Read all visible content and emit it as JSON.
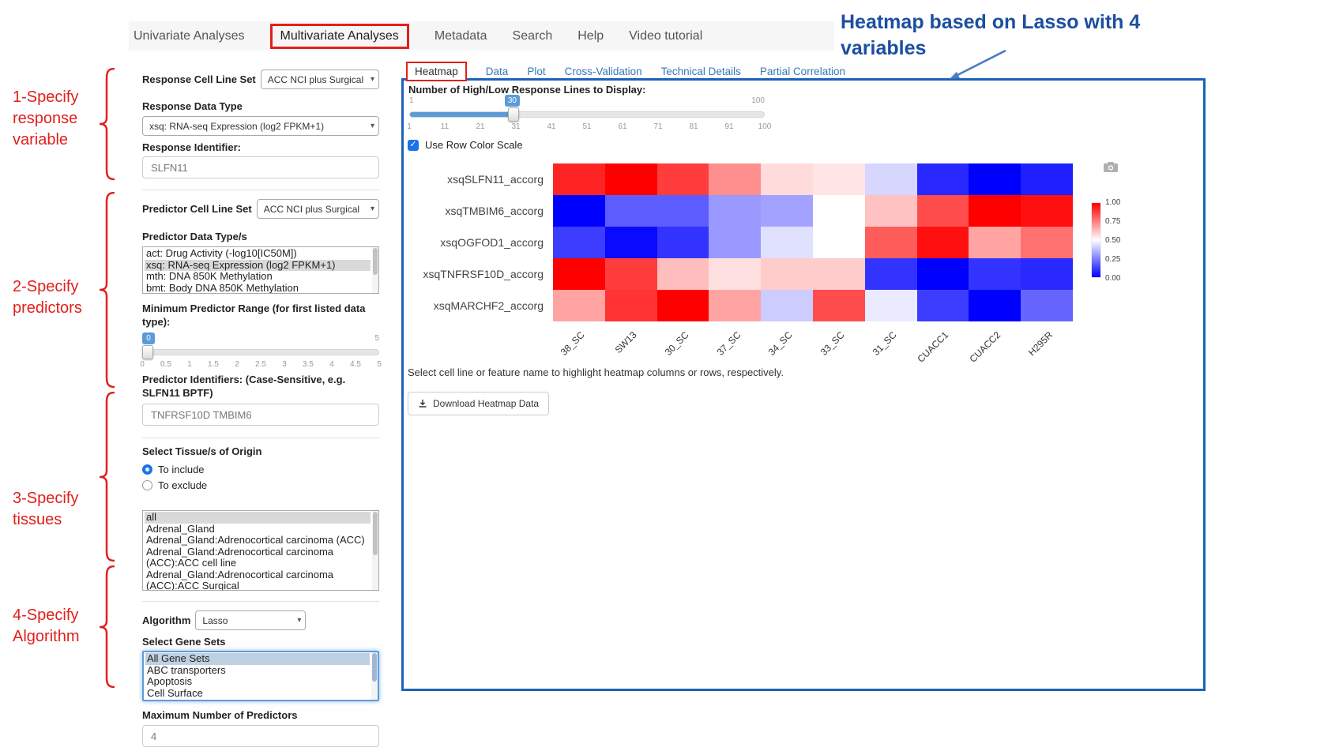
{
  "annotations": {
    "heading": "Heatmap based on Lasso with 4 variables",
    "steps": [
      "1-Specify response variable",
      "2-Specify predictors",
      "3-Specify tissues",
      "4-Specify Algorithm"
    ]
  },
  "nav": {
    "items": [
      "Univariate Analyses",
      "Multivariate Analyses",
      "Metadata",
      "Search",
      "Help",
      "Video tutorial"
    ],
    "active": "Multivariate Analyses"
  },
  "sidebar": {
    "response_cell_line_set_label": "Response Cell Line Set",
    "response_cell_line_set_value": "ACC NCI plus Surgical",
    "response_data_type_label": "Response Data Type",
    "response_data_type_value": "xsq: RNA-seq Expression (log2 FPKM+1)",
    "response_identifier_label": "Response Identifier:",
    "response_identifier_value": "SLFN11",
    "predictor_cell_line_set_label": "Predictor Cell Line Set",
    "predictor_cell_line_set_value": "ACC NCI plus Surgical",
    "predictor_data_types_label": "Predictor Data Type/s",
    "predictor_data_types_options": [
      {
        "label": "act: Drug Activity (-log10[IC50M])",
        "selected": false
      },
      {
        "label": "xsq: RNA-seq Expression (log2 FPKM+1)",
        "selected": true
      },
      {
        "label": "mth: DNA 850K Methylation",
        "selected": false
      },
      {
        "label": "bmt: Body DNA 850K Methylation",
        "selected": false
      }
    ],
    "min_predictor_range_label": "Minimum Predictor Range (for first listed data type):",
    "min_predictor_range_slider": {
      "min": "0",
      "max": "5",
      "value": "0",
      "ticks": [
        "0",
        "0.5",
        "1",
        "1.5",
        "2",
        "2.5",
        "3",
        "3.5",
        "4",
        "4.5",
        "5"
      ]
    },
    "predictor_identifiers_label": "Predictor Identifiers: (Case-Sensitive, e.g. SLFN11 BPTF)",
    "predictor_identifiers_value": "TNFRSF10D TMBIM6",
    "tissue_label": "Select Tissue/s of Origin",
    "tissue_radios": [
      {
        "label": "To include",
        "checked": true
      },
      {
        "label": "To exclude",
        "checked": false
      }
    ],
    "tissue_options": [
      {
        "label": "all",
        "selected": true
      },
      {
        "label": "Adrenal_Gland",
        "selected": false
      },
      {
        "label": "Adrenal_Gland:Adrenocortical carcinoma (ACC)",
        "selected": false
      },
      {
        "label": "Adrenal_Gland:Adrenocortical carcinoma (ACC):ACC cell line",
        "selected": false
      },
      {
        "label": "Adrenal_Gland:Adrenocortical carcinoma (ACC):ACC Surgical",
        "selected": false
      }
    ],
    "algorithm_label": "Algorithm",
    "algorithm_value": "Lasso",
    "gene_sets_label": "Select Gene Sets",
    "gene_sets_options": [
      {
        "label": "All Gene Sets",
        "selected": true
      },
      {
        "label": "ABC transporters",
        "selected": false
      },
      {
        "label": "Apoptosis",
        "selected": false
      },
      {
        "label": "Cell Surface",
        "selected": false
      }
    ],
    "max_predictors_label": "Maximum Number of Predictors",
    "max_predictors_value": "4"
  },
  "main": {
    "tabs": [
      {
        "label": "Heatmap",
        "active": true
      },
      {
        "label": "Data",
        "active": false
      },
      {
        "label": "Plot",
        "active": false
      },
      {
        "label": "Cross-Validation",
        "active": false
      },
      {
        "label": "Technical Details",
        "active": false
      },
      {
        "label": "Partial Correlation",
        "active": false
      }
    ],
    "lines_slider_label": "Number of High/Low Response Lines to Display:",
    "lines_slider": {
      "min": "1",
      "max": "100",
      "value": "30",
      "ticks": [
        "1",
        "11",
        "21",
        "31",
        "41",
        "51",
        "61",
        "71",
        "81",
        "91",
        "100"
      ]
    },
    "row_color_scale_label": "Use Row Color Scale",
    "row_color_scale_checked": true,
    "note": "Select cell line or feature name to highlight heatmap columns or rows, respectively.",
    "download_button": "Download Heatmap Data"
  },
  "chart_data": {
    "type": "heatmap",
    "rows": [
      "xsqSLFN11_accorg",
      "xsqTMBIM6_accorg",
      "xsqOGFOD1_accorg",
      "xsqTNFRSF10D_accorg",
      "xsqMARCHF2_accorg"
    ],
    "columns": [
      "38_SC",
      "SW13",
      "30_SC",
      "37_SC",
      "34_SC",
      "33_SC",
      "31_SC",
      "CUACC1",
      "CUACC2",
      "H295R"
    ],
    "values": [
      [
        0.93,
        1.0,
        0.88,
        0.72,
        0.57,
        0.55,
        0.42,
        0.08,
        0.0,
        0.06
      ],
      [
        0.0,
        0.18,
        0.18,
        0.3,
        0.32,
        0.5,
        0.62,
        0.85,
        1.0,
        0.97
      ],
      [
        0.12,
        0.02,
        0.1,
        0.3,
        0.44,
        0.5,
        0.82,
        0.97,
        0.68,
        0.78
      ],
      [
        1.0,
        0.88,
        0.63,
        0.56,
        0.6,
        0.6,
        0.1,
        0.0,
        0.1,
        0.08
      ],
      [
        0.68,
        0.9,
        1.0,
        0.68,
        0.4,
        0.85,
        0.46,
        0.12,
        0.0,
        0.2
      ]
    ],
    "zlim": [
      0,
      1
    ],
    "colorbar_ticks": [
      "1.00",
      "0.75",
      "0.50",
      "0.25",
      "0.00"
    ],
    "colors": {
      "low": "#0000ff",
      "mid": "#ffffff",
      "high": "#ff0000"
    },
    "legend_position": "right",
    "grid": false
  },
  "colors": {
    "annotation_red": "#e0201c",
    "annotation_blue": "#1b4fa0",
    "panel_border_blue": "#1c63b7",
    "tab_link_blue": "#337ab7",
    "slider_blue": "#5a9bd8"
  }
}
